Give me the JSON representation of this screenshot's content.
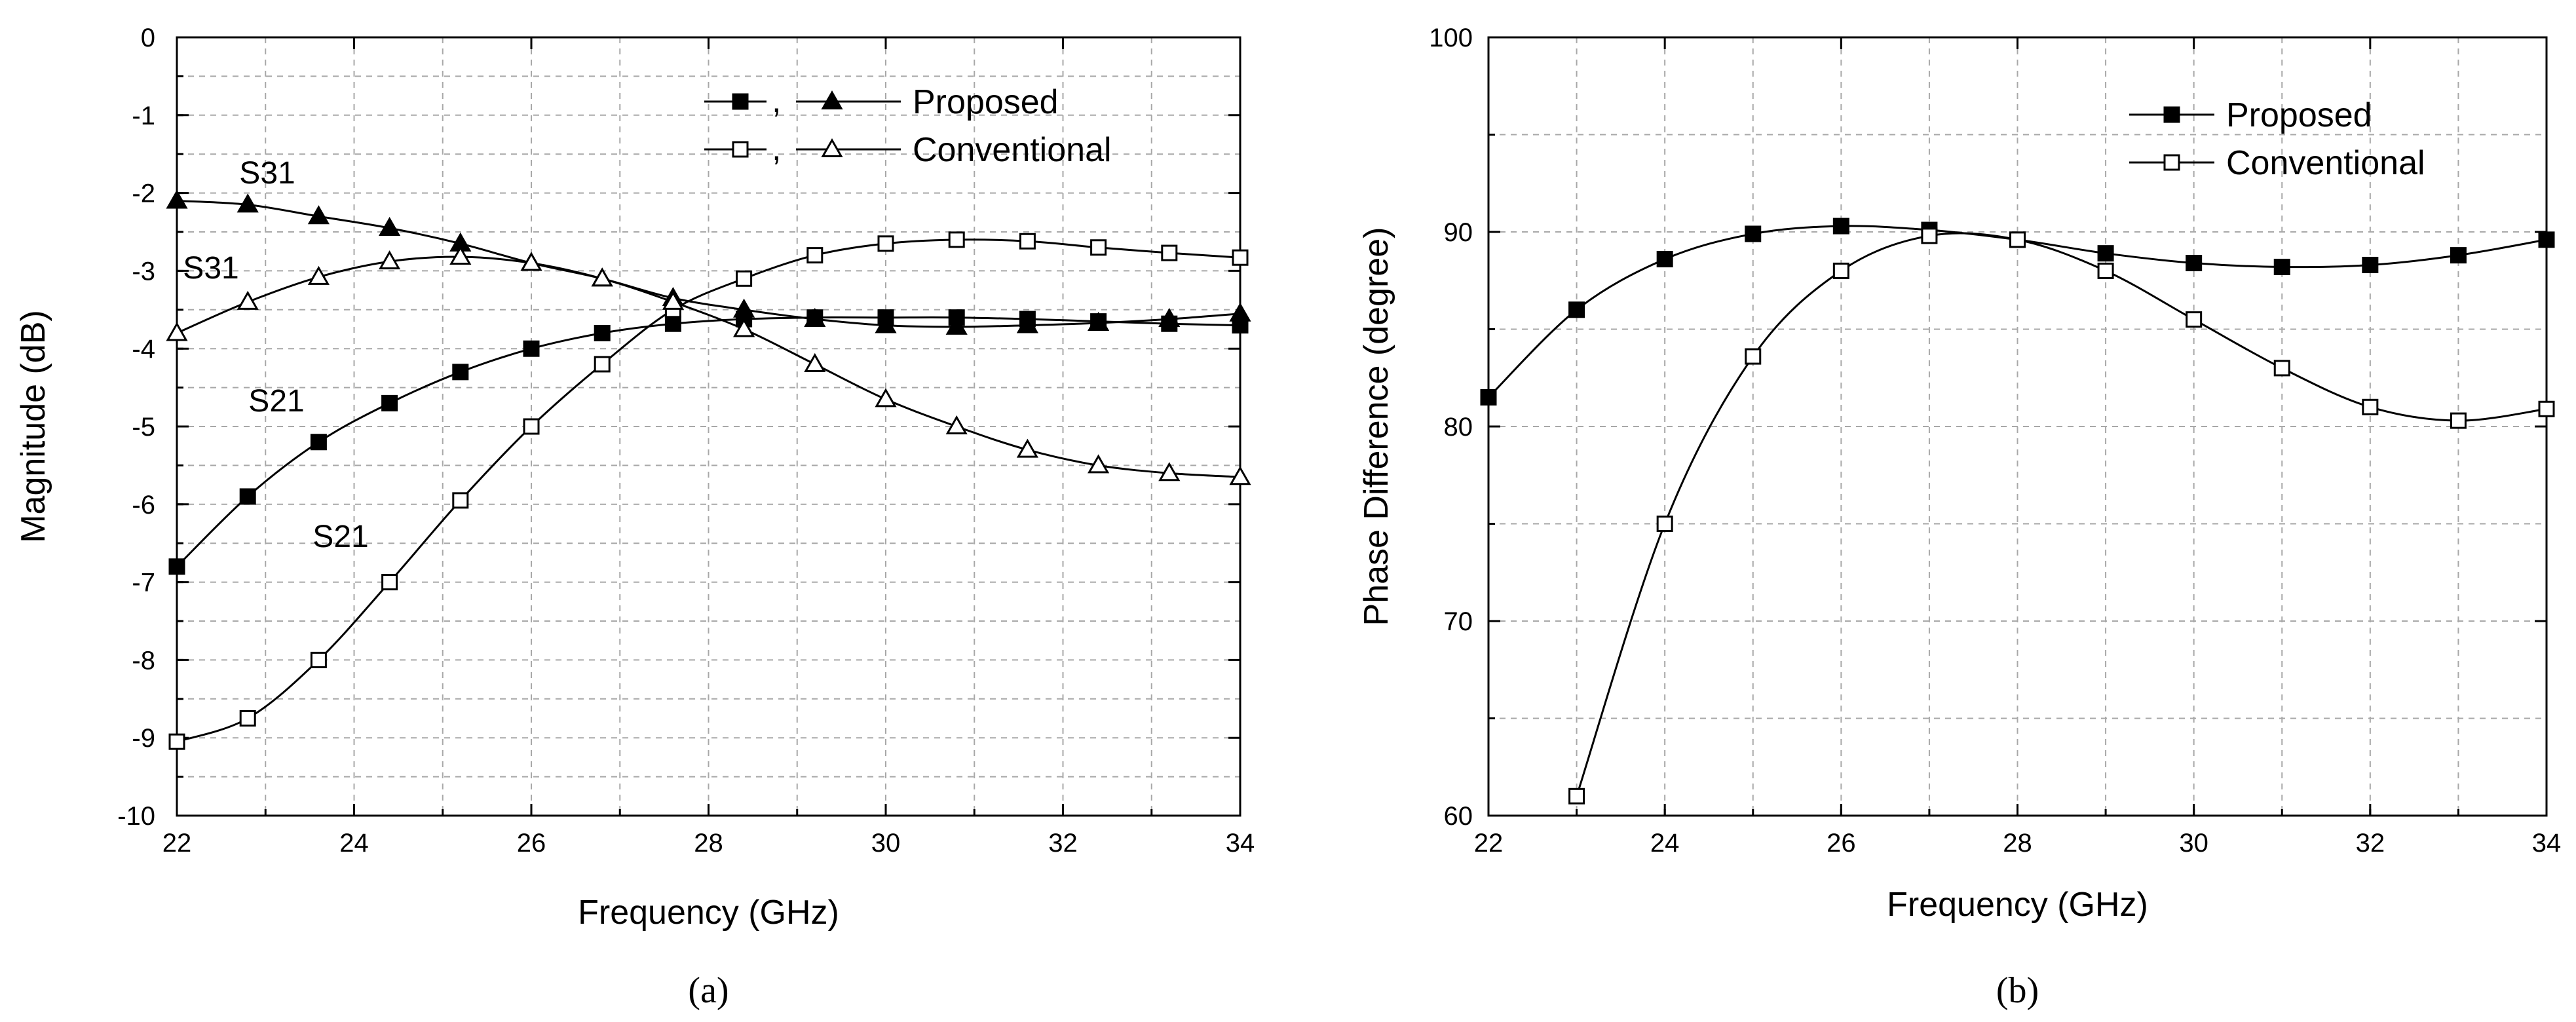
{
  "chart_data": [
    {
      "id": "a",
      "type": "line",
      "caption": "(a)",
      "xlabel": "Frequency (GHz)",
      "ylabel": "Magnitude (dB)",
      "xlim": [
        22,
        34
      ],
      "ylim": [
        -10,
        0
      ],
      "xticks": [
        22,
        24,
        26,
        28,
        30,
        32,
        34
      ],
      "yticks": [
        0,
        -1,
        -2,
        -3,
        -4,
        -5,
        -6,
        -7,
        -8,
        -9,
        -10
      ],
      "grid": true,
      "legend": {
        "position": "top-right",
        "entries": [
          {
            "label": "Proposed",
            "separator": ",",
            "markers": [
              "filled-square",
              "filled-triangle"
            ]
          },
          {
            "label": "Conventional",
            "separator": ",",
            "markers": [
              "open-square",
              "open-triangle"
            ]
          }
        ]
      },
      "annotations": [
        {
          "text": "S31",
          "x": 23.7,
          "y": -1.75
        },
        {
          "text": "S31",
          "x": 22.9,
          "y": -2.85
        },
        {
          "text": "S21",
          "x": 23.2,
          "y": -4.85
        },
        {
          "text": "S21",
          "x": 24.0,
          "y": -6.45
        }
      ],
      "series": [
        {
          "name": "Proposed S21",
          "marker": "filled-square",
          "x": [
            22,
            22.8,
            23.6,
            24.4,
            25.2,
            26,
            26.8,
            27.6,
            28.4,
            29.2,
            30,
            30.8,
            31.6,
            32.4,
            33.2,
            34
          ],
          "y": [
            -6.8,
            -5.9,
            -5.2,
            -4.7,
            -4.3,
            -4.0,
            -3.8,
            -3.68,
            -3.62,
            -3.6,
            -3.6,
            -3.6,
            -3.62,
            -3.65,
            -3.68,
            -3.7
          ]
        },
        {
          "name": "Proposed S31",
          "marker": "filled-triangle",
          "x": [
            22,
            22.8,
            23.6,
            24.4,
            25.2,
            26,
            26.8,
            27.6,
            28.4,
            29.2,
            30,
            30.8,
            31.6,
            32.4,
            33.2,
            34
          ],
          "y": [
            -2.1,
            -2.15,
            -2.3,
            -2.45,
            -2.65,
            -2.9,
            -3.1,
            -3.35,
            -3.5,
            -3.62,
            -3.7,
            -3.72,
            -3.7,
            -3.67,
            -3.62,
            -3.55
          ]
        },
        {
          "name": "Conventional S21",
          "marker": "open-square",
          "x": [
            22,
            22.8,
            23.6,
            24.4,
            25.2,
            26,
            26.8,
            27.6,
            28.4,
            29.2,
            30,
            30.8,
            31.6,
            32.4,
            33.2,
            34
          ],
          "y": [
            -9.05,
            -8.75,
            -8.0,
            -7.0,
            -5.95,
            -5.0,
            -4.2,
            -3.5,
            -3.1,
            -2.8,
            -2.65,
            -2.6,
            -2.62,
            -2.7,
            -2.77,
            -2.83
          ]
        },
        {
          "name": "Conventional S31",
          "marker": "open-triangle",
          "x": [
            22,
            22.8,
            23.6,
            24.4,
            25.2,
            26,
            26.8,
            27.6,
            28.4,
            29.2,
            30,
            30.8,
            31.6,
            32.4,
            33.2,
            34
          ],
          "y": [
            -3.8,
            -3.4,
            -3.08,
            -2.88,
            -2.82,
            -2.9,
            -3.1,
            -3.4,
            -3.75,
            -4.2,
            -4.65,
            -5.0,
            -5.3,
            -5.5,
            -5.6,
            -5.65
          ]
        }
      ]
    },
    {
      "id": "b",
      "type": "line",
      "caption": "(b)",
      "xlabel": "Frequency (GHz)",
      "ylabel": "Phase Difference (degree)",
      "xlim": [
        22,
        34
      ],
      "ylim": [
        60,
        100
      ],
      "xticks": [
        22,
        24,
        26,
        28,
        30,
        32,
        34
      ],
      "yticks": [
        60,
        70,
        80,
        90,
        100
      ],
      "grid": true,
      "legend": {
        "position": "top-right",
        "entries": [
          {
            "label": "Proposed",
            "markers": [
              "filled-square"
            ]
          },
          {
            "label": "Conventional",
            "markers": [
              "open-square"
            ]
          }
        ]
      },
      "series": [
        {
          "name": "Proposed",
          "marker": "filled-square",
          "x": [
            22,
            23,
            24,
            25,
            26,
            27,
            28,
            29,
            30,
            31,
            32,
            33,
            34
          ],
          "y": [
            81.5,
            86.0,
            88.6,
            89.9,
            90.3,
            90.1,
            89.6,
            88.9,
            88.4,
            88.2,
            88.3,
            88.8,
            89.6
          ]
        },
        {
          "name": "Conventional",
          "marker": "open-square",
          "x": [
            23,
            24,
            25,
            26,
            27,
            28,
            29,
            30,
            31,
            32,
            33,
            34
          ],
          "y": [
            61.0,
            75.0,
            83.6,
            88.0,
            89.8,
            89.6,
            88.0,
            85.5,
            83.0,
            81.0,
            80.3,
            80.9
          ]
        }
      ]
    }
  ]
}
